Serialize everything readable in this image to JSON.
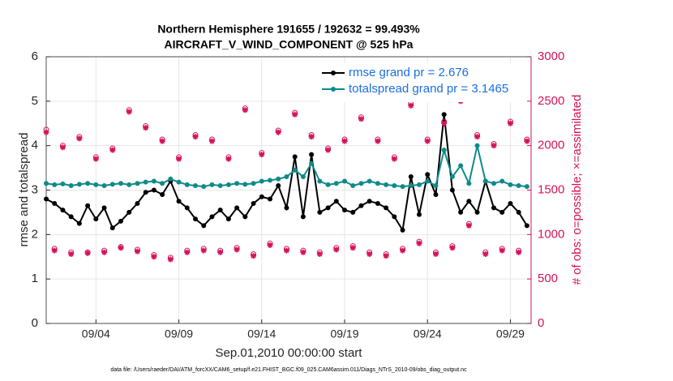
{
  "chart_data": {
    "type": "line",
    "title": "Northern Hemisphere 191655 / 192632 = 99.493%",
    "subtitle": "AIRCRAFT_V_WIND_COMPONENT @ 525 hPa",
    "x_label": "Sep.01,2010 00:00:00 start",
    "y_label": "rmse and totalspread",
    "y2_label": "# of obs: o=possible; ×=assimilated",
    "footnote": "data file: /Users/raeder/DAI/ATM_forcXX/CAM6_setup/f.e21.FHIST_BGC.f09_025.CAM6assim.011/Diags_NTrS_2010-09/obs_diag_output.nc",
    "xlim": [
      0,
      29.25
    ],
    "xticks": [
      {
        "value": 3,
        "label": "09/04"
      },
      {
        "value": 8,
        "label": "09/09"
      },
      {
        "value": 13,
        "label": "09/14"
      },
      {
        "value": 18,
        "label": "09/19"
      },
      {
        "value": 23,
        "label": "09/24"
      },
      {
        "value": 28,
        "label": "09/29"
      }
    ],
    "ylim": [
      0,
      6
    ],
    "yticks": [
      0,
      1,
      2,
      3,
      4,
      5,
      6
    ],
    "y2lim": [
      0,
      3000
    ],
    "y2ticks": [
      0,
      500,
      1000,
      1500,
      2000,
      2500,
      3000
    ],
    "y2_color": "#d6125a",
    "grid": true,
    "legend": "top-right",
    "x": [
      0,
      0.5,
      1,
      1.5,
      2,
      2.5,
      3,
      3.5,
      4,
      4.5,
      5,
      5.5,
      6,
      6.5,
      7,
      7.5,
      8,
      8.5,
      9,
      9.5,
      10,
      10.5,
      11,
      11.5,
      12,
      12.5,
      13,
      13.5,
      14,
      14.5,
      15,
      15.5,
      16,
      16.5,
      17,
      17.5,
      18,
      18.5,
      19,
      19.5,
      20,
      20.5,
      21,
      21.5,
      22,
      22.5,
      23,
      23.5,
      24,
      24.5,
      25,
      25.5,
      26,
      26.5,
      27,
      27.5,
      28,
      28.5,
      29
    ],
    "series": [
      {
        "name": "rmse grand pr = 2.676",
        "color": "#000000",
        "marker": "circle-line",
        "values": [
          2.8,
          2.7,
          2.55,
          2.4,
          2.25,
          2.65,
          2.35,
          2.6,
          2.15,
          2.3,
          2.5,
          2.7,
          2.95,
          3.0,
          2.9,
          3.2,
          2.75,
          2.6,
          2.35,
          2.2,
          2.4,
          2.55,
          2.35,
          2.6,
          2.4,
          2.7,
          2.85,
          2.8,
          3.1,
          2.6,
          3.75,
          2.4,
          3.8,
          2.5,
          2.6,
          2.75,
          2.55,
          2.5,
          2.65,
          2.75,
          2.7,
          2.6,
          2.4,
          2.1,
          3.3,
          2.45,
          3.35,
          2.9,
          4.7,
          3.0,
          2.5,
          2.75,
          2.5,
          3.2,
          2.6,
          2.5,
          2.7,
          2.5,
          2.2
        ]
      },
      {
        "name": "totalspread grand pr = 3.1465",
        "color": "#0f8a8a",
        "marker": "circle-line",
        "values": [
          3.15,
          3.12,
          3.14,
          3.1,
          3.13,
          3.15,
          3.12,
          3.1,
          3.13,
          3.15,
          3.12,
          3.15,
          3.18,
          3.2,
          3.15,
          3.25,
          3.18,
          3.12,
          3.1,
          3.08,
          3.12,
          3.1,
          3.12,
          3.15,
          3.13,
          3.15,
          3.2,
          3.22,
          3.25,
          3.3,
          3.45,
          3.3,
          3.6,
          3.2,
          3.12,
          3.15,
          3.2,
          3.1,
          3.15,
          3.2,
          3.15,
          3.12,
          3.1,
          3.08,
          3.1,
          3.12,
          3.2,
          3.1,
          3.9,
          3.3,
          3.55,
          3.15,
          4.0,
          3.2,
          3.15,
          3.2,
          3.12,
          3.1,
          3.08
        ]
      },
      {
        "axis": "y2",
        "color": "#d6125a",
        "marker": "open-circle",
        "values": [
          2180,
          840,
          2000,
          800,
          2100,
          800,
          1870,
          820,
          1970,
          860,
          2400,
          830,
          2220,
          770,
          2070,
          740,
          1870,
          820,
          2120,
          840,
          2070,
          820,
          1870,
          850,
          2420,
          780,
          1920,
          900,
          2170,
          840,
          2370,
          820,
          2120,
          800,
          1970,
          850,
          2070,
          870,
          2320,
          800,
          2070,
          780,
          1870,
          840,
          2470,
          920,
          2070,
          800,
          2270,
          870,
          2520,
          1120,
          2120,
          800,
          2020,
          840,
          2270,
          820,
          2070
        ]
      },
      {
        "axis": "y2",
        "color": "#d6125a",
        "marker": "asterisk",
        "values": [
          2150,
          820,
          1980,
          780,
          2080,
          790,
          1850,
          800,
          1950,
          850,
          2380,
          810,
          2200,
          750,
          2050,
          720,
          1850,
          800,
          2100,
          820,
          2050,
          800,
          1850,
          830,
          2400,
          760,
          1900,
          880,
          2150,
          820,
          2350,
          800,
          2100,
          780,
          1950,
          830,
          2050,
          850,
          2300,
          780,
          2050,
          760,
          1850,
          820,
          2450,
          900,
          2050,
          780,
          2250,
          850,
          2500,
          1100,
          2100,
          780,
          2000,
          820,
          2250,
          800,
          2050
        ]
      }
    ]
  }
}
